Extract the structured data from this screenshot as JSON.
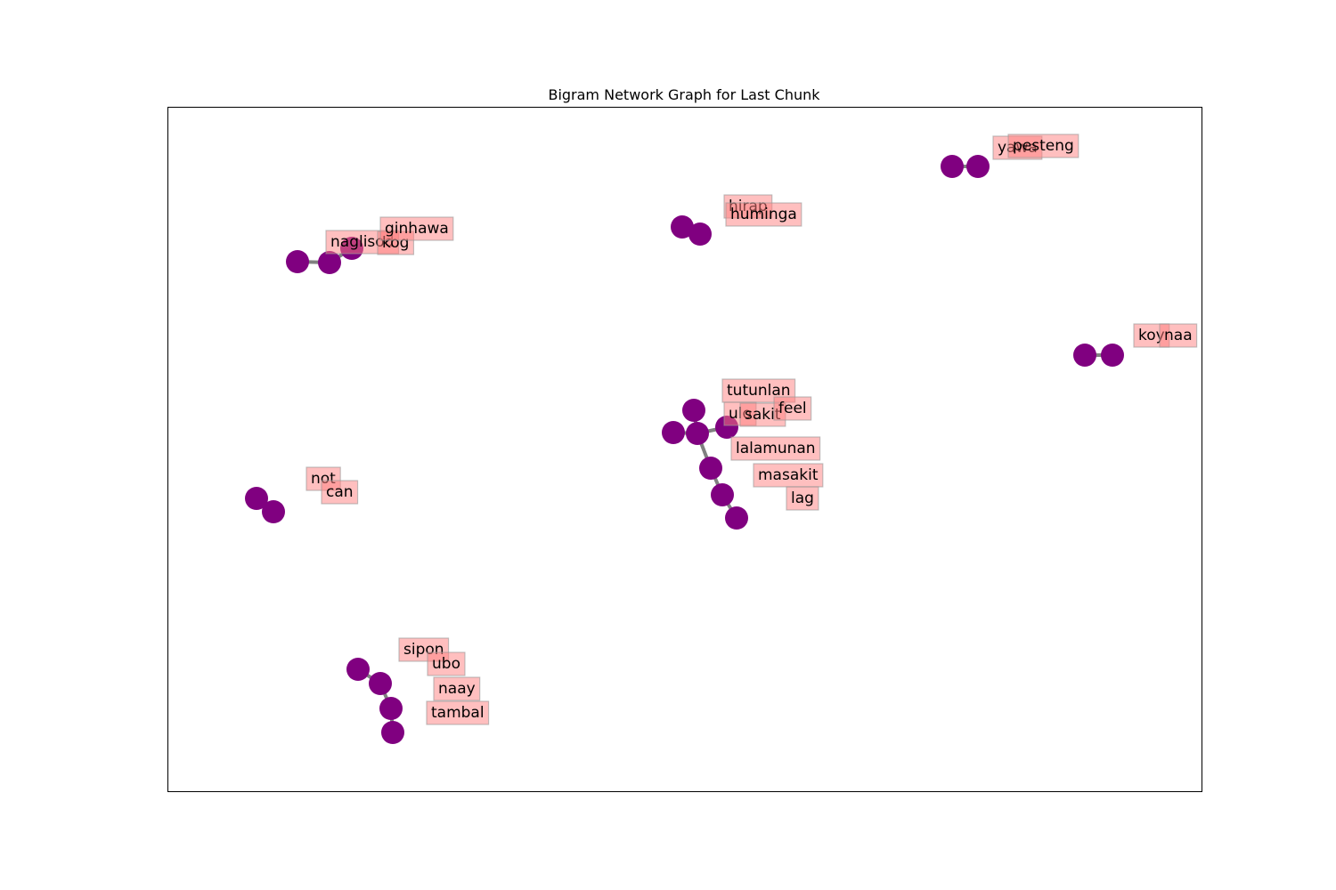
{
  "title": "Bigram Network Graph for Last Chunk",
  "colors": {
    "node": "#800080",
    "edge": "#808080",
    "label_box": "#ff8080",
    "axes_frame": "#000000"
  },
  "nodes": [
    {
      "id": "yawa"
    },
    {
      "id": "pesteng"
    },
    {
      "id": "hirap"
    },
    {
      "id": "huminga"
    },
    {
      "id": "naglisod"
    },
    {
      "id": "kog"
    },
    {
      "id": "ginhawa"
    },
    {
      "id": "koy"
    },
    {
      "id": "naa"
    },
    {
      "id": "tutunlan"
    },
    {
      "id": "ulo"
    },
    {
      "id": "sakit"
    },
    {
      "id": "feel"
    },
    {
      "id": "lalamunan"
    },
    {
      "id": "masakit"
    },
    {
      "id": "lag"
    },
    {
      "id": "not"
    },
    {
      "id": "can"
    },
    {
      "id": "sipon"
    },
    {
      "id": "ubo"
    },
    {
      "id": "naay"
    },
    {
      "id": "tambal"
    }
  ],
  "edges": [
    [
      "yawa",
      "pesteng"
    ],
    [
      "hirap",
      "huminga"
    ],
    [
      "naglisod",
      "kog"
    ],
    [
      "kog",
      "ginhawa"
    ],
    [
      "koy",
      "naa"
    ],
    [
      "tutunlan",
      "sakit"
    ],
    [
      "ulo",
      "sakit"
    ],
    [
      "sakit",
      "feel"
    ],
    [
      "sakit",
      "lalamunan"
    ],
    [
      "lalamunan",
      "masakit"
    ],
    [
      "masakit",
      "lag"
    ],
    [
      "not",
      "can"
    ],
    [
      "sipon",
      "ubo"
    ],
    [
      "ubo",
      "naay"
    ],
    [
      "naay",
      "tambal"
    ]
  ]
}
